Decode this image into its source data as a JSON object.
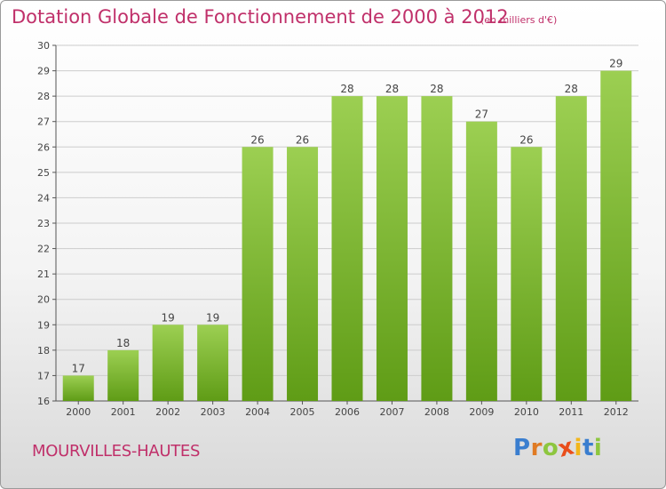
{
  "header": {
    "title": "Dotation Globale de Fonctionnement de 2000 à 2012",
    "unit": "(en milliers d'€)"
  },
  "footer": {
    "city": "MOURVILLES-HAUTES",
    "brand": {
      "letters": [
        "P",
        "r",
        "o",
        "x",
        "i",
        "t",
        "i"
      ],
      "colors": [
        "#3a7ecf",
        "#e07b24",
        "#8dc63f",
        "#e94e1b",
        "#f2b61b",
        "#3a7ecf",
        "#8dc63f"
      ]
    }
  },
  "chart_data": {
    "type": "bar",
    "title": "Dotation Globale de Fonctionnement de 2000 à 2012",
    "categories": [
      "2000",
      "2001",
      "2002",
      "2003",
      "2004",
      "2005",
      "2006",
      "2007",
      "2008",
      "2009",
      "2010",
      "2011",
      "2012"
    ],
    "values": [
      17,
      18,
      19,
      19,
      26,
      26,
      28,
      28,
      28,
      27,
      26,
      28,
      29
    ],
    "ylim": [
      16,
      30
    ],
    "yticks": [
      16,
      17,
      18,
      19,
      20,
      21,
      22,
      23,
      24,
      25,
      26,
      27,
      28,
      29,
      30
    ],
    "grid": true,
    "colors": {
      "bar_top": "#9ccf52",
      "bar_bottom": "#5f9c16",
      "grid": "#cccccc",
      "axis": "#555555"
    }
  }
}
